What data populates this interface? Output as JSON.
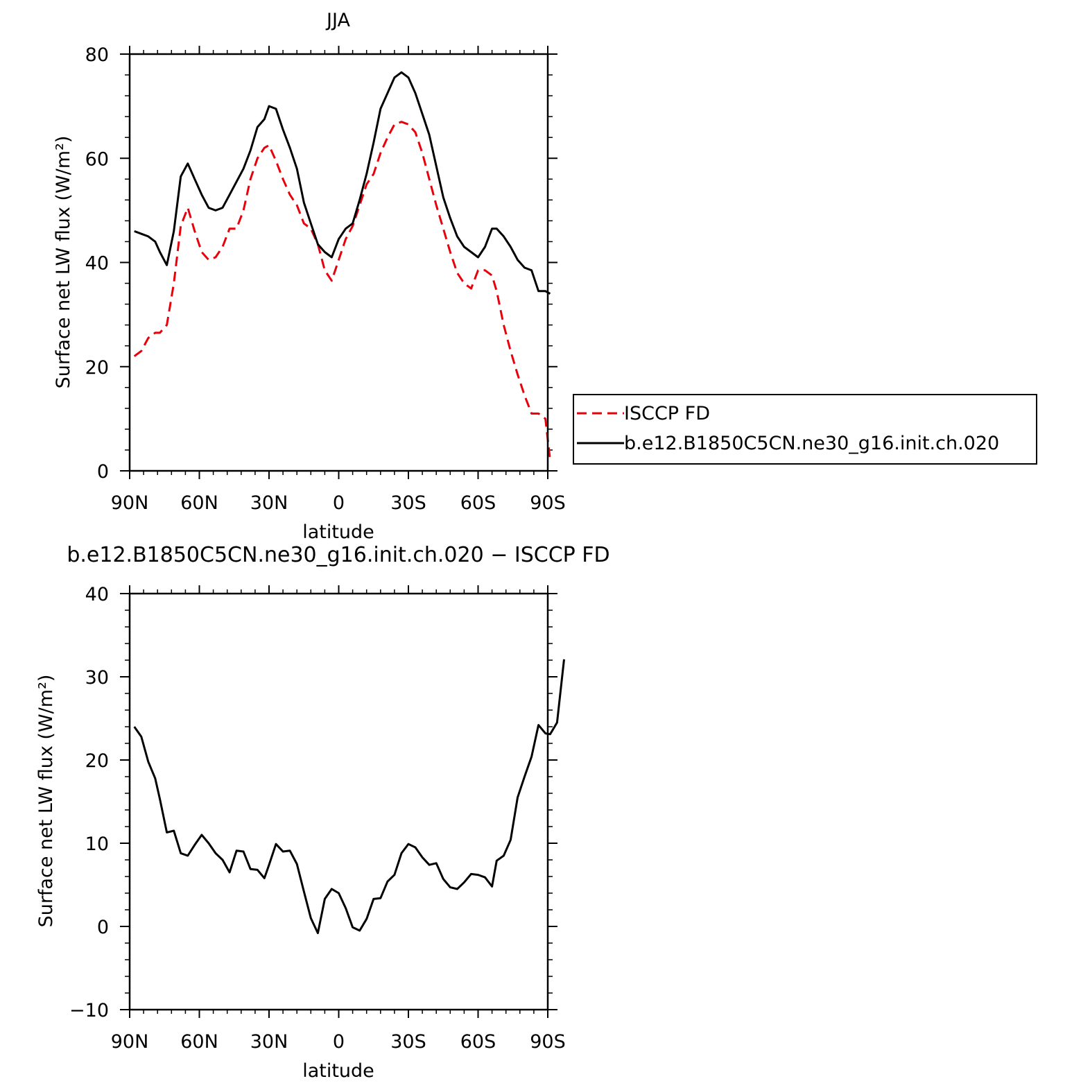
{
  "chart_data": [
    {
      "type": "line",
      "title": "JJA",
      "xlabel": "latitude",
      "ylabel": "Surface net LW flux (W/m²)",
      "xlim": [
        90,
        -90
      ],
      "ylim": [
        0,
        80
      ],
      "x_ticks": [
        {
          "value": 90,
          "label": "90N"
        },
        {
          "value": 60,
          "label": "60N"
        },
        {
          "value": 30,
          "label": "30N"
        },
        {
          "value": 0,
          "label": "0"
        },
        {
          "value": -30,
          "label": "30S"
        },
        {
          "value": -60,
          "label": "60S"
        },
        {
          "value": -90,
          "label": "90S"
        }
      ],
      "y_ticks": [
        {
          "value": 0,
          "label": "0"
        },
        {
          "value": 20,
          "label": "20"
        },
        {
          "value": 40,
          "label": "40"
        },
        {
          "value": 60,
          "label": "60"
        },
        {
          "value": 80,
          "label": "80"
        }
      ],
      "legend": {
        "position": "right"
      },
      "series": [
        {
          "name": "ISCCP FD",
          "color": "#e8000b",
          "dash": "dashed",
          "points": [
            [
              88,
              22
            ],
            [
              85,
              23
            ],
            [
              82,
              25.5
            ],
            [
              79,
              26.5
            ],
            [
              77,
              26.5
            ],
            [
              74,
              28
            ],
            [
              71,
              36
            ],
            [
              68,
              47
            ],
            [
              65,
              50.5
            ],
            [
              62,
              46
            ],
            [
              59,
              42
            ],
            [
              56,
              40.5
            ],
            [
              53,
              41
            ],
            [
              50,
              43
            ],
            [
              47,
              46.5
            ],
            [
              44,
              46.5
            ],
            [
              41,
              50
            ],
            [
              38,
              56
            ],
            [
              35,
              60
            ],
            [
              32,
              62
            ],
            [
              30,
              62.5
            ],
            [
              27,
              59.5
            ],
            [
              24,
              56
            ],
            [
              21,
              53
            ],
            [
              18,
              51
            ],
            [
              15,
              47.5
            ],
            [
              12,
              46.5
            ],
            [
              9,
              43.5
            ],
            [
              6,
              38.5
            ],
            [
              3,
              36.5
            ],
            [
              0,
              40.5
            ],
            [
              -3,
              44.5
            ],
            [
              -6,
              47
            ],
            [
              -9,
              51
            ],
            [
              -12,
              55
            ],
            [
              -15,
              57
            ],
            [
              -18,
              61
            ],
            [
              -21,
              64
            ],
            [
              -24,
              66.5
            ],
            [
              -27,
              67
            ],
            [
              -30,
              66.5
            ],
            [
              -33,
              65
            ],
            [
              -36,
              61
            ],
            [
              -39,
              56
            ],
            [
              -42,
              51
            ],
            [
              -45,
              46.5
            ],
            [
              -48,
              42
            ],
            [
              -51,
              38
            ],
            [
              -54,
              36
            ],
            [
              -57,
              35
            ],
            [
              -60,
              38.5
            ],
            [
              -63,
              38.5
            ],
            [
              -66,
              37.5
            ],
            [
              -68,
              34.5
            ],
            [
              -71,
              28
            ],
            [
              -74,
              23
            ],
            [
              -77,
              18.5
            ],
            [
              -80,
              14.5
            ],
            [
              -83,
              11
            ],
            [
              -86,
              11
            ],
            [
              -89,
              10
            ],
            [
              -91,
              2
            ]
          ]
        },
        {
          "name": "b.e12.B1850C5CN.ne30_g16.init.ch.020",
          "color": "#000000",
          "dash": "solid",
          "points": [
            [
              88,
              46
            ],
            [
              85,
              45.5
            ],
            [
              82,
              45
            ],
            [
              79,
              44
            ],
            [
              77,
              42
            ],
            [
              74,
              39.5
            ],
            [
              71,
              46
            ],
            [
              68,
              56.5
            ],
            [
              65,
              59
            ],
            [
              62,
              56
            ],
            [
              59,
              53
            ],
            [
              56,
              50.5
            ],
            [
              53,
              50
            ],
            [
              50,
              50.5
            ],
            [
              47,
              53
            ],
            [
              44,
              55.5
            ],
            [
              41,
              58
            ],
            [
              38,
              61.5
            ],
            [
              35,
              66
            ],
            [
              32,
              67.5
            ],
            [
              30,
              70
            ],
            [
              27,
              69.5
            ],
            [
              24,
              65.5
            ],
            [
              21,
              62
            ],
            [
              18,
              58
            ],
            [
              15,
              51.5
            ],
            [
              12,
              47.5
            ],
            [
              9,
              43.5
            ],
            [
              6,
              42
            ],
            [
              3,
              41
            ],
            [
              0,
              44.5
            ],
            [
              -3,
              46.5
            ],
            [
              -6,
              47.5
            ],
            [
              -9,
              52
            ],
            [
              -12,
              57
            ],
            [
              -15,
              63
            ],
            [
              -18,
              69.5
            ],
            [
              -21,
              72.5
            ],
            [
              -24,
              75.5
            ],
            [
              -27,
              76.5
            ],
            [
              -30,
              75.5
            ],
            [
              -33,
              72.5
            ],
            [
              -36,
              68.5
            ],
            [
              -39,
              64.5
            ],
            [
              -42,
              58.5
            ],
            [
              -45,
              52.5
            ],
            [
              -48,
              48.5
            ],
            [
              -51,
              45
            ],
            [
              -54,
              43
            ],
            [
              -57,
              42
            ],
            [
              -60,
              41
            ],
            [
              -63,
              43
            ],
            [
              -66,
              46.5
            ],
            [
              -68,
              46.5
            ],
            [
              -71,
              45
            ],
            [
              -74,
              43
            ],
            [
              -77,
              40.5
            ],
            [
              -80,
              39
            ],
            [
              -83,
              38.5
            ],
            [
              -86,
              34.5
            ],
            [
              -89,
              34.5
            ],
            [
              -91,
              34
            ]
          ]
        }
      ]
    },
    {
      "type": "line",
      "title": "b.e12.B1850C5CN.ne30_g16.init.ch.020 − ISCCP FD",
      "xlabel": "latitude",
      "ylabel": "Surface net LW flux (W/m²)",
      "xlim": [
        90,
        -90
      ],
      "ylim": [
        -10,
        40
      ],
      "x_ticks": [
        {
          "value": 90,
          "label": "90N"
        },
        {
          "value": 60,
          "label": "60N"
        },
        {
          "value": 30,
          "label": "30N"
        },
        {
          "value": 0,
          "label": "0"
        },
        {
          "value": -30,
          "label": "30S"
        },
        {
          "value": -60,
          "label": "60S"
        },
        {
          "value": -90,
          "label": "90S"
        }
      ],
      "y_ticks": [
        {
          "value": -10,
          "label": "−10"
        },
        {
          "value": 0,
          "label": "0"
        },
        {
          "value": 10,
          "label": "10"
        },
        {
          "value": 20,
          "label": "20"
        },
        {
          "value": 30,
          "label": "30"
        },
        {
          "value": 40,
          "label": "40"
        }
      ],
      "series": [
        {
          "color": "#000000",
          "dash": "solid",
          "points": [
            [
              88,
              24
            ],
            [
              85,
              22.8
            ],
            [
              82,
              19.8
            ],
            [
              79,
              17.8
            ],
            [
              77,
              15.3
            ],
            [
              74,
              11.3
            ],
            [
              71,
              11.5
            ],
            [
              68,
              8.8
            ],
            [
              65,
              8.5
            ],
            [
              62,
              9.8
            ],
            [
              59,
              11
            ],
            [
              56,
              10
            ],
            [
              53,
              8.8
            ],
            [
              50,
              8
            ],
            [
              47,
              6.5
            ],
            [
              44,
              9.1
            ],
            [
              41,
              9
            ],
            [
              38,
              6.9
            ],
            [
              35,
              6.8
            ],
            [
              32,
              5.8
            ],
            [
              30,
              7.4
            ],
            [
              27,
              9.9
            ],
            [
              24,
              9
            ],
            [
              21,
              9.1
            ],
            [
              18,
              7.5
            ],
            [
              15,
              4.2
            ],
            [
              12,
              1
            ],
            [
              9,
              -0.8
            ],
            [
              6,
              3.3
            ],
            [
              3,
              4.5
            ],
            [
              0,
              4
            ],
            [
              -3,
              2.2
            ],
            [
              -6,
              -0.1
            ],
            [
              -9,
              -0.5
            ],
            [
              -12,
              0.9
            ],
            [
              -15,
              3.3
            ],
            [
              -18,
              3.4
            ],
            [
              -21,
              5.4
            ],
            [
              -24,
              6.2
            ],
            [
              -27,
              8.8
            ],
            [
              -30,
              9.9
            ],
            [
              -33,
              9.5
            ],
            [
              -36,
              8.3
            ],
            [
              -39,
              7.4
            ],
            [
              -42,
              7.6
            ],
            [
              -45,
              5.7
            ],
            [
              -48,
              4.7
            ],
            [
              -51,
              4.5
            ],
            [
              -54,
              5.3
            ],
            [
              -57,
              6.3
            ],
            [
              -60,
              6.2
            ],
            [
              -63,
              5.9
            ],
            [
              -66,
              4.8
            ],
            [
              -68,
              7.9
            ],
            [
              -71,
              8.5
            ],
            [
              -74,
              10.4
            ],
            [
              -77,
              15.5
            ],
            [
              -80,
              18
            ],
            [
              -83,
              20.4
            ],
            [
              -86,
              24.2
            ],
            [
              -89,
              23.2
            ],
            [
              -91,
              23.1
            ],
            [
              -94,
              24.5
            ],
            [
              -97,
              32.1
            ]
          ]
        }
      ]
    }
  ]
}
